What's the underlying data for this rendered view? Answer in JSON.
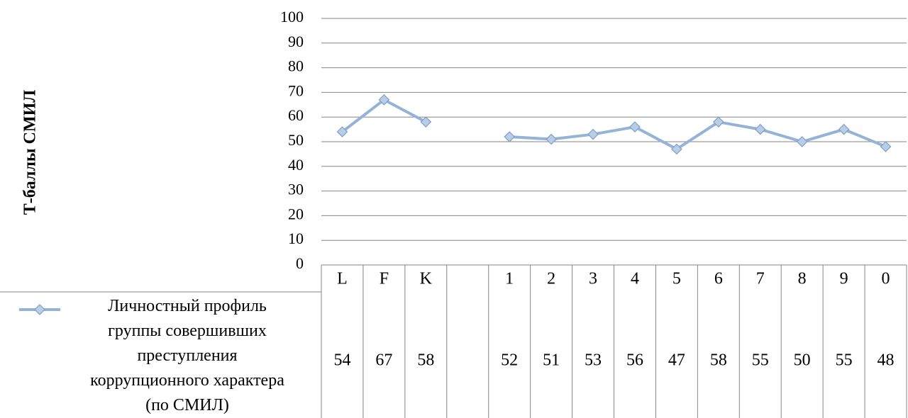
{
  "chart_data": {
    "type": "line",
    "ylabel": "Т-баллы СМИЛ",
    "ylim": [
      0,
      100
    ],
    "yticks": [
      0,
      10,
      20,
      30,
      40,
      50,
      60,
      70,
      80,
      90,
      100
    ],
    "categories": [
      "L",
      "F",
      "K",
      "",
      "1",
      "2",
      "3",
      "4",
      "5",
      "6",
      "7",
      "8",
      "9",
      "0"
    ],
    "series": [
      {
        "name": "Личностный профиль группы совершивших преступления коррупционного характера (по СМИЛ)",
        "legend_lines": [
          "Личностный профиль",
          "группы совершивших",
          "преступления",
          "коррупционного характера",
          "(по СМИЛ)"
        ],
        "values": [
          54,
          67,
          58,
          null,
          52,
          51,
          53,
          56,
          47,
          58,
          55,
          50,
          55,
          48
        ]
      }
    ],
    "grid": true,
    "data_table": true,
    "colors": {
      "series": "#95B3D7",
      "marker_fill": "#B9CDE5",
      "marker_stroke": "#7F9FC9",
      "grid": "#868686"
    }
  }
}
